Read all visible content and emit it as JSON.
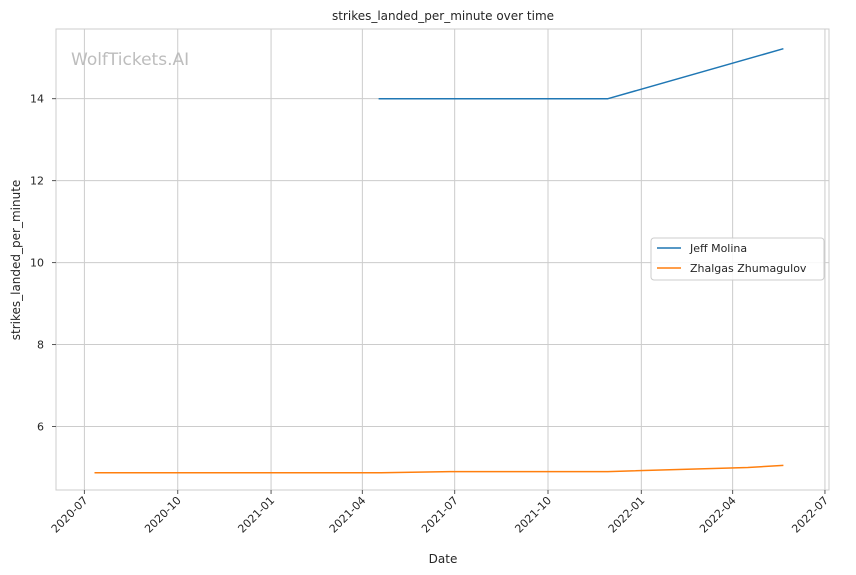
{
  "watermark": "WolfTickets.AI",
  "chart_data": {
    "type": "line",
    "title": "strikes_landed_per_minute over time",
    "xlabel": "Date",
    "ylabel": "strikes_landed_per_minute",
    "x_axis_type": "date",
    "xlim": [
      "2020-06-03",
      "2022-07-05"
    ],
    "ylim": [
      4.45,
      15.7
    ],
    "x_ticks": [
      "2020-07",
      "2020-10",
      "2021-01",
      "2021-04",
      "2021-07",
      "2021-10",
      "2022-01",
      "2022-04",
      "2022-07"
    ],
    "y_ticks": [
      6,
      8,
      10,
      12,
      14
    ],
    "grid": true,
    "legend_position": "center-right",
    "series": [
      {
        "name": "Jeff Molina",
        "color": "#1f77b4",
        "x": [
          "2021-04-17",
          "2021-11-29",
          "2022-05-21"
        ],
        "y": [
          14.0,
          14.0,
          15.22
        ]
      },
      {
        "name": "Zhalgas Zhumagulov",
        "color": "#ff7f0e",
        "x": [
          "2020-07-11",
          "2021-04-17",
          "2021-06-26",
          "2021-11-29",
          "2022-04-16",
          "2022-05-21"
        ],
        "y": [
          4.87,
          4.87,
          4.9,
          4.9,
          5.0,
          5.05
        ]
      }
    ]
  }
}
